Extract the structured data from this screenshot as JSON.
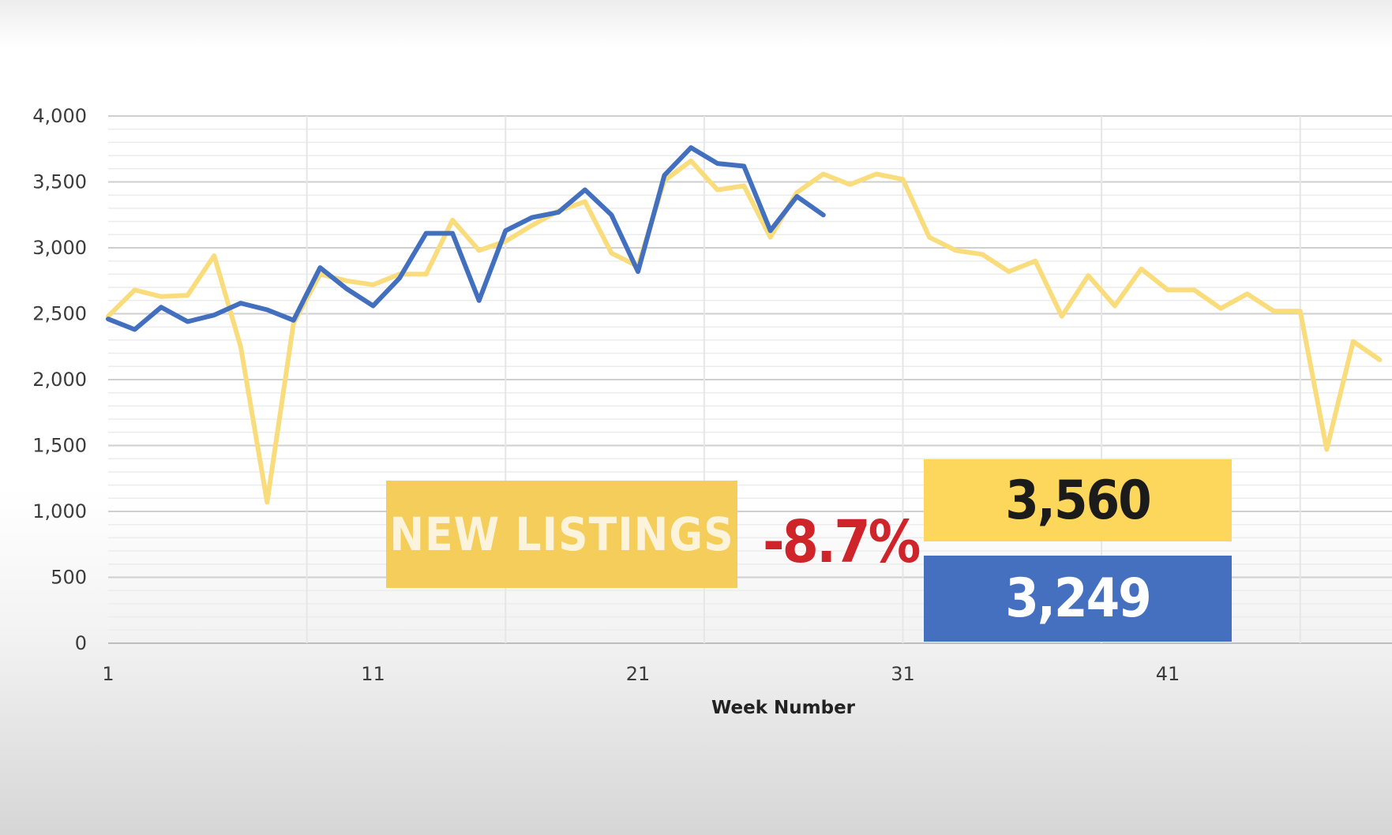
{
  "chart_data": {
    "type": "line",
    "xlabel": "Week Number",
    "ylabel": "",
    "ylim": [
      0,
      4000
    ],
    "xlim": [
      1,
      49
    ],
    "yticks": [
      "0",
      "500",
      "1,000",
      "1,500",
      "2,000",
      "2,500",
      "3,000",
      "3,500",
      "4,000"
    ],
    "yticks_values": [
      0,
      500,
      1000,
      1500,
      2000,
      2500,
      3000,
      3500,
      4000
    ],
    "xticks": [
      "1",
      "11",
      "21",
      "31",
      "41"
    ],
    "xticks_values": [
      1,
      11,
      21,
      31,
      41
    ],
    "grid": true,
    "series": [
      {
        "color": "#f9dc7c",
        "x": [
          1,
          2,
          3,
          4,
          5,
          6,
          7,
          8,
          9,
          10,
          11,
          12,
          13,
          14,
          15,
          16,
          17,
          18,
          19,
          20,
          21,
          22,
          23,
          24,
          25,
          26,
          27,
          28,
          29,
          30,
          31,
          32,
          33,
          34,
          35,
          36,
          37,
          38,
          39,
          40,
          41,
          42,
          43,
          44,
          45,
          46,
          47,
          48,
          49
        ],
        "values": [
          2480,
          2680,
          2630,
          2640,
          2940,
          2250,
          1070,
          2430,
          2800,
          2750,
          2720,
          2800,
          2800,
          3210,
          2980,
          3050,
          3170,
          3280,
          3350,
          2960,
          2860,
          3510,
          3660,
          3440,
          3470,
          3080,
          3420,
          3560,
          3480,
          3560,
          3520,
          3080,
          2980,
          2950,
          2820,
          2900,
          2480,
          2790,
          2560,
          2840,
          2680,
          2680,
          2540,
          2650,
          2520,
          2520,
          1470,
          2290,
          2150
        ]
      },
      {
        "color": "#4270bf",
        "x": [
          1,
          2,
          3,
          4,
          5,
          6,
          7,
          8,
          9,
          10,
          11,
          12,
          13,
          14,
          15,
          16,
          17,
          18,
          19,
          20,
          21,
          22,
          23,
          24,
          25,
          26,
          27,
          28
        ],
        "values": [
          2460,
          2380,
          2550,
          2440,
          2490,
          2580,
          2530,
          2450,
          2850,
          2690,
          2560,
          2770,
          3110,
          3110,
          2600,
          3130,
          3230,
          3270,
          3440,
          3250,
          2820,
          3550,
          3760,
          3640,
          3620,
          3130,
          3390,
          3249
        ]
      }
    ]
  },
  "overlay": {
    "label": "NEW LISTINGS",
    "percent_change": "-8.7%",
    "previous_value": "3,560",
    "current_value": "3,249",
    "colors": {
      "label_bg": "#f4cd5a",
      "previous_bg": "#fdd65c",
      "current_bg": "#4570bf",
      "percent_text": "#d0242b"
    }
  }
}
